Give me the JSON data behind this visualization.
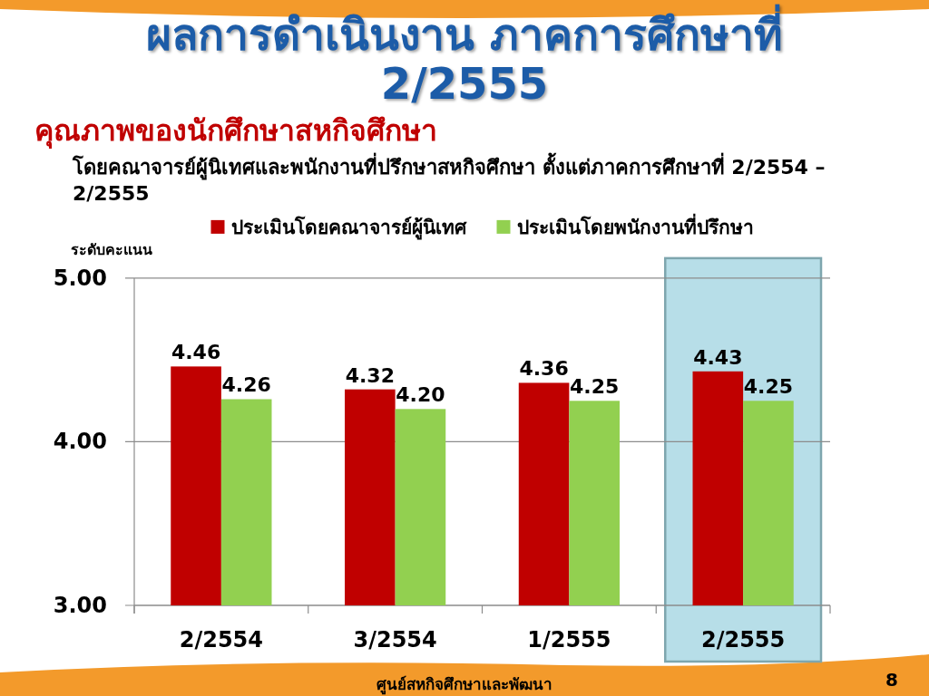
{
  "chart_data": {
    "type": "bar",
    "title": "ผลการดำเนินงาน ภาคการศึกษาที่ 2/2555",
    "subtitle": "คุณภาพของนักศึกษาสหกิจศึกษา",
    "ylabel": "ระดับคะแนน",
    "annotations": [
      "โดยคณาจารย์ผู้นิเทศและพนักงานที่ปรึกษาสหกิจศึกษา ตั้งแต่ภาคการศึกษาที่ 2/2554 – 2/2555",
      "ศูนย์สหกิจศึกษาและพัฒนา",
      "8"
    ],
    "categories": [
      "2/2554",
      "3/2554",
      "1/2555",
      "2/2555"
    ],
    "series": [
      {
        "name": "ประเมินโดยคณาจารย์ผู้นิเทศ",
        "color": "#c00000",
        "values": [
          4.46,
          4.32,
          4.36,
          4.43
        ],
        "value_labels": [
          "4.46",
          "4.32",
          "4.36",
          "4.43"
        ]
      },
      {
        "name": "ประเมินโดยพนักงานที่ปรึกษา",
        "color": "#92d050",
        "values": [
          4.26,
          4.2,
          4.25,
          4.25
        ],
        "value_labels": [
          "4.26",
          "4.20",
          "4.25",
          "4.25"
        ]
      }
    ],
    "ylim": [
      3,
      5
    ],
    "yticks": [
      {
        "value": 3,
        "label": "3.00"
      },
      {
        "value": 4,
        "label": "4.00"
      },
      {
        "value": 5,
        "label": "5.00"
      }
    ],
    "grid": "y",
    "legend": "top",
    "bands": [
      {
        "axis": "x",
        "from": "2/2555",
        "to": "2/2555",
        "color": "#b7dee8"
      }
    ]
  }
}
